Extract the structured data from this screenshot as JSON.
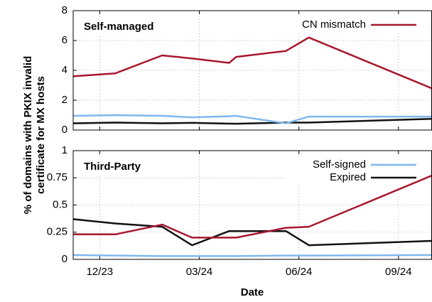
{
  "ylabel": [
    "% of domains with PKIX invalid",
    "certificate for MX hosts"
  ],
  "xlabel": "Date",
  "chart_data": [
    {
      "type": "line",
      "title": "Self-managed",
      "x": [
        11.2,
        12.47,
        13.88,
        14.78,
        15.9,
        16.11,
        17.61,
        18.3,
        22.0
      ],
      "xlim": [
        11.2,
        22.0
      ],
      "ylim": [
        0,
        8
      ],
      "yticks": [
        0,
        2,
        4,
        6,
        8
      ],
      "grid": true,
      "legend": "upper right",
      "series": [
        {
          "name": "CN mismatch",
          "color": "#a8172e",
          "values": [
            3.6,
            3.8,
            5.0,
            4.8,
            4.5,
            4.9,
            5.3,
            6.2,
            2.8
          ]
        },
        {
          "color": "#7fb8ee",
          "values": [
            0.95,
            1.0,
            0.95,
            0.85,
            0.92,
            0.95,
            0.45,
            0.9,
            0.9
          ]
        },
        {
          "color": "#111111",
          "values": [
            0.45,
            0.5,
            0.45,
            0.48,
            0.43,
            0.42,
            0.5,
            0.5,
            0.75
          ]
        }
      ]
    },
    {
      "type": "line",
      "title": "Third-Party",
      "x": [
        11.2,
        12.47,
        13.88,
        14.78,
        15.9,
        16.11,
        17.61,
        18.3,
        22.0
      ],
      "xlim": [
        11.2,
        22.0
      ],
      "xticks": [
        {
          "value": 12,
          "label": "12/23"
        },
        {
          "value": 15,
          "label": "03/24"
        },
        {
          "value": 18,
          "label": "06/24"
        },
        {
          "value": 21,
          "label": "09/24"
        }
      ],
      "ylim": [
        0,
        1
      ],
      "yticks": [
        0,
        0.25,
        0.5,
        0.75,
        1
      ],
      "grid": true,
      "legend": "upper right",
      "series": [
        {
          "color": "#a8172e",
          "values": [
            0.23,
            0.23,
            0.32,
            0.2,
            0.2,
            0.2,
            0.29,
            0.3,
            0.77
          ]
        },
        {
          "name": "Self-signed",
          "color": "#7fb8ee",
          "values": [
            0.04,
            0.035,
            0.03,
            0.03,
            0.03,
            0.03,
            0.035,
            0.035,
            0.04
          ]
        },
        {
          "name": "Expired",
          "color": "#111111",
          "values": [
            0.37,
            0.33,
            0.3,
            0.13,
            0.26,
            0.26,
            0.26,
            0.13,
            0.17
          ]
        }
      ]
    }
  ]
}
